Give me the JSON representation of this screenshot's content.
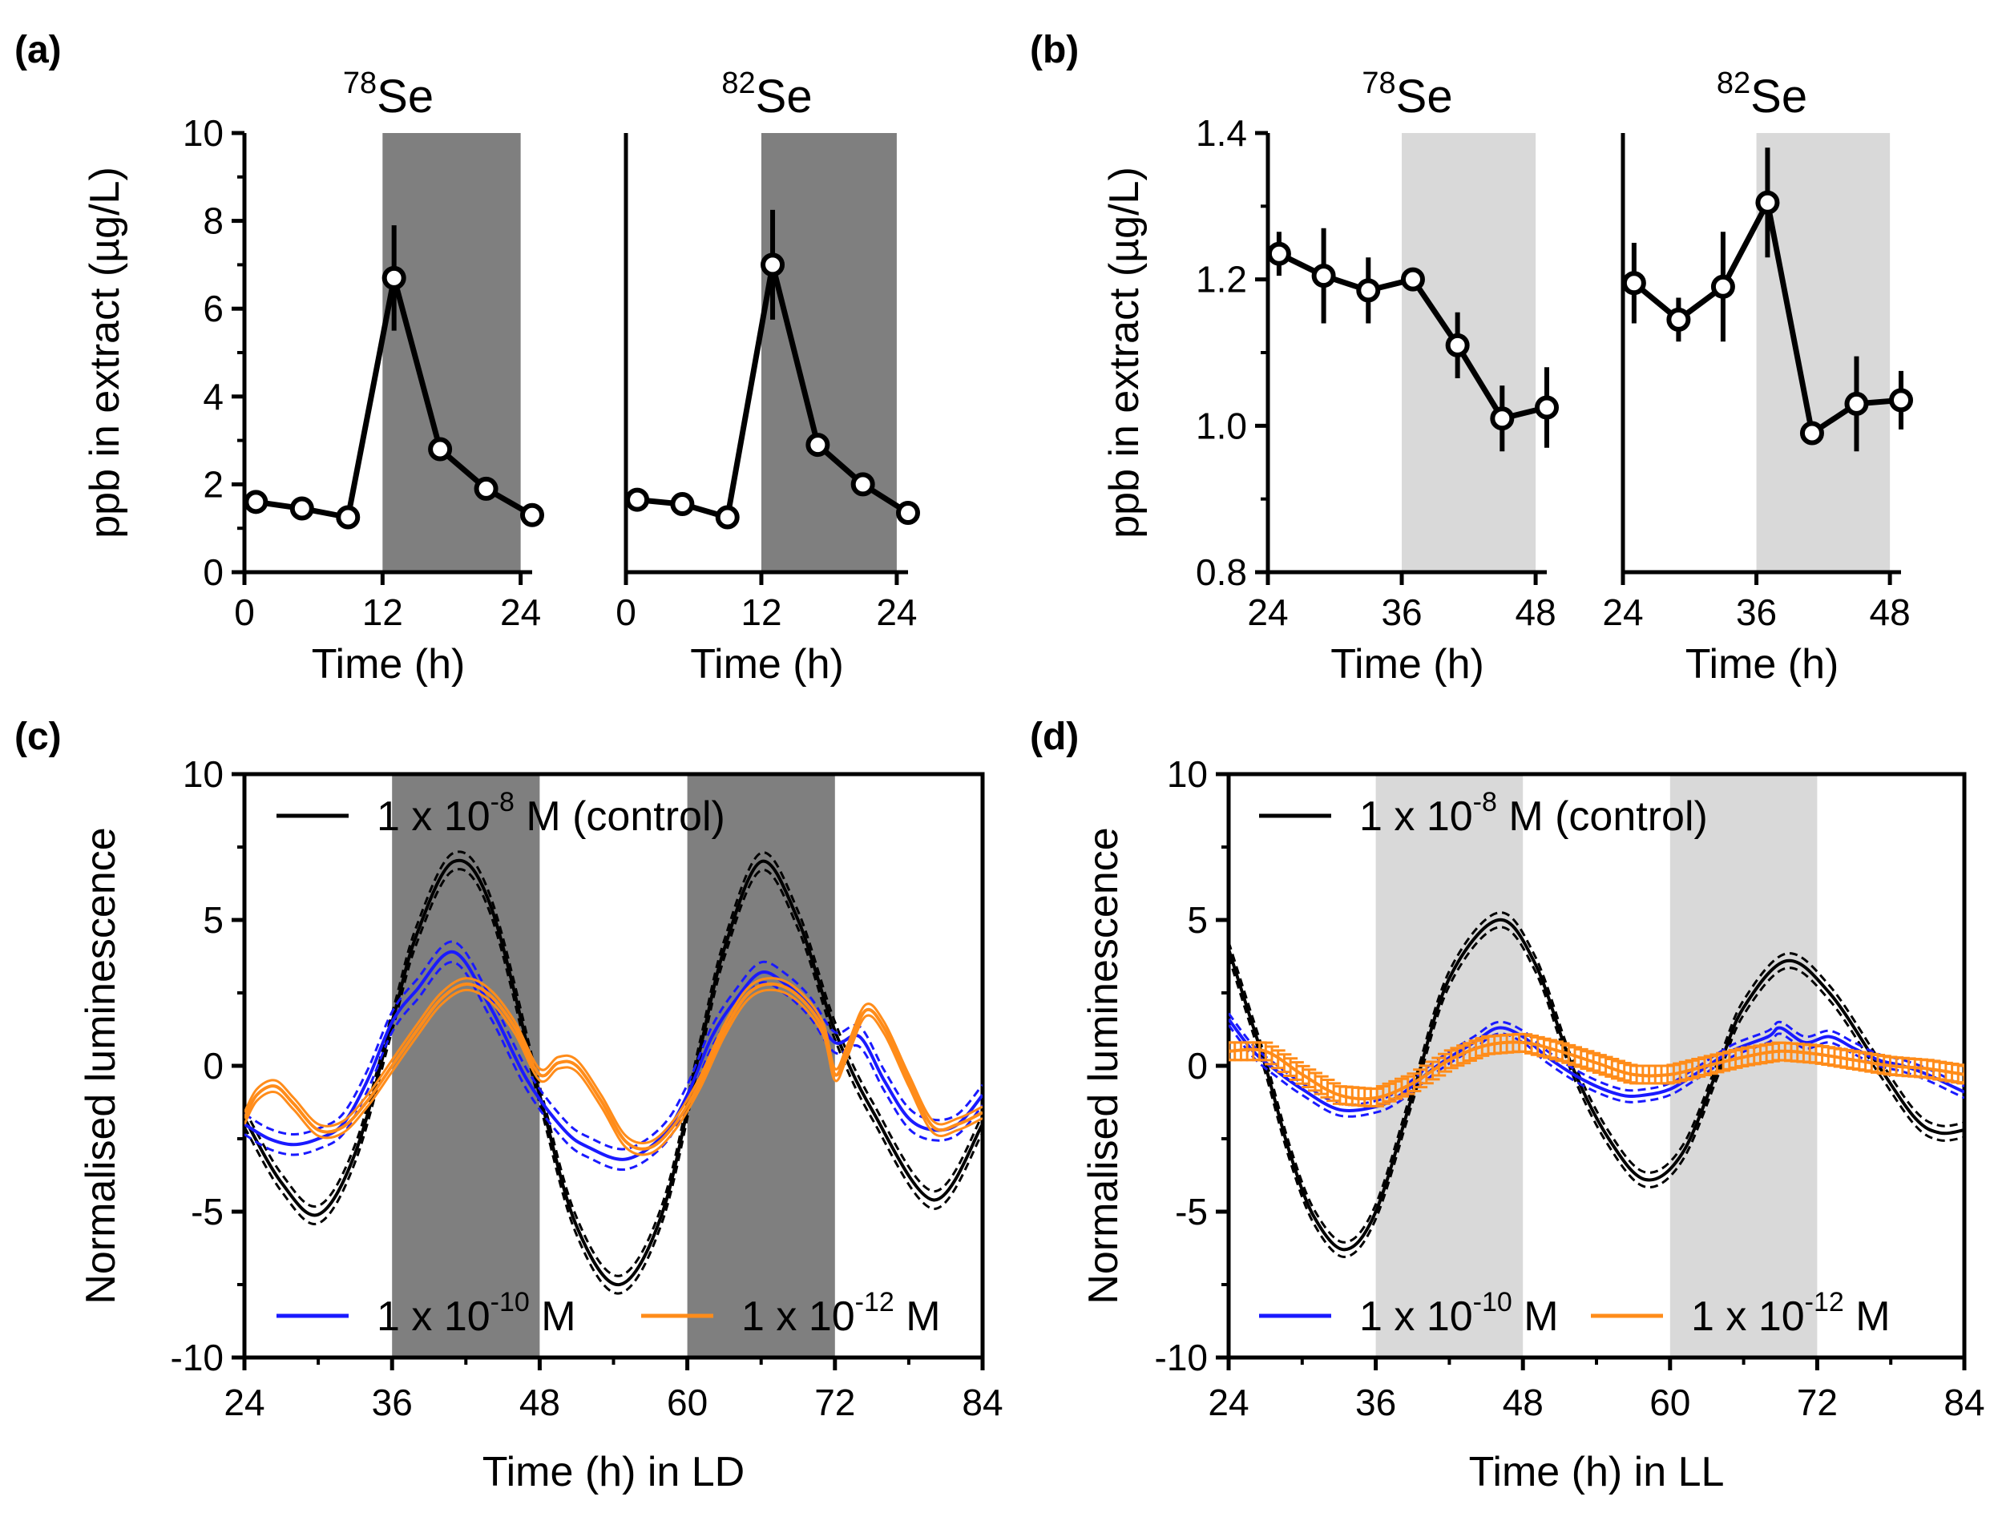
{
  "colors": {
    "axis": "#000000",
    "dark_shade": "#7f7f7f",
    "light_shade": "#d9d9d9",
    "control": "#000000",
    "m10": "#1a1aff",
    "m12": "#ff8c1a"
  },
  "chart_data": [
    {
      "id": "a1",
      "panel_label": "(a)",
      "type": "line",
      "title_mass": "78",
      "title_element": "Se",
      "xlabel": "Time (h)",
      "ylabel": "ppb in extract (µg/L)",
      "xlim": [
        0,
        25
      ],
      "ylim": [
        0,
        10
      ],
      "xticks": [
        "0",
        "12",
        "24"
      ],
      "yticks": [
        "0",
        "2",
        "4",
        "6",
        "8",
        "10"
      ],
      "shade": [
        {
          "from": 12,
          "to": 24,
          "tone": "dark"
        }
      ],
      "x": [
        1,
        5,
        9,
        13,
        17,
        21,
        25
      ],
      "y": [
        1.6,
        1.45,
        1.25,
        6.7,
        2.8,
        1.9,
        1.3
      ],
      "err": [
        0.12,
        0.12,
        0.12,
        1.2,
        0.15,
        0.12,
        0.12
      ]
    },
    {
      "id": "a2",
      "type": "line",
      "title_mass": "82",
      "title_element": "Se",
      "xlabel": "Time (h)",
      "xlim": [
        0,
        25
      ],
      "ylim": [
        0,
        10
      ],
      "xticks": [
        "0",
        "12",
        "24"
      ],
      "shade": [
        {
          "from": 12,
          "to": 24,
          "tone": "dark"
        }
      ],
      "x": [
        1,
        5,
        9,
        13,
        17,
        21,
        25
      ],
      "y": [
        1.65,
        1.55,
        1.25,
        7.0,
        2.9,
        2.0,
        1.35
      ],
      "err": [
        0.12,
        0.12,
        0.12,
        1.25,
        0.15,
        0.12,
        0.12
      ]
    },
    {
      "id": "b1",
      "panel_label": "(b)",
      "type": "line",
      "title_mass": "78",
      "title_element": "Se",
      "xlabel": "Time (h)",
      "ylabel": "ppb in extract (µg/L)",
      "xlim": [
        24,
        49
      ],
      "ylim": [
        0.8,
        1.4
      ],
      "xticks": [
        "24",
        "36",
        "48"
      ],
      "yticks": [
        "0.8",
        "1.0",
        "1.2",
        "1.4"
      ],
      "shade": [
        {
          "from": 36,
          "to": 48,
          "tone": "light"
        }
      ],
      "x": [
        25,
        29,
        33,
        37,
        41,
        45,
        49
      ],
      "y": [
        1.235,
        1.205,
        1.185,
        1.2,
        1.11,
        1.01,
        1.025
      ],
      "err": [
        0.03,
        0.065,
        0.045,
        0.015,
        0.045,
        0.045,
        0.055
      ]
    },
    {
      "id": "b2",
      "type": "line",
      "title_mass": "82",
      "title_element": "Se",
      "xlabel": "Time (h)",
      "xlim": [
        24,
        49
      ],
      "ylim": [
        0.8,
        1.4
      ],
      "xticks": [
        "24",
        "36",
        "48"
      ],
      "shade": [
        {
          "from": 36,
          "to": 48,
          "tone": "light"
        }
      ],
      "x": [
        25,
        29,
        33,
        37,
        41,
        45,
        49
      ],
      "y": [
        1.195,
        1.145,
        1.19,
        1.305,
        0.99,
        1.03,
        1.035
      ],
      "err": [
        0.055,
        0.03,
        0.075,
        0.075,
        0.015,
        0.065,
        0.04
      ]
    },
    {
      "id": "c",
      "panel_label": "(c)",
      "type": "line",
      "xlabel": "Time (h) in LD",
      "ylabel": "Normalised luminescence",
      "xlim": [
        24,
        84
      ],
      "ylim": [
        -10,
        10
      ],
      "xticks": [
        "24",
        "36",
        "48",
        "60",
        "72",
        "84"
      ],
      "yticks": [
        "-10",
        "-5",
        "0",
        "5",
        "10"
      ],
      "shade": [
        {
          "from": 36,
          "to": 48,
          "tone": "dark"
        },
        {
          "from": 60,
          "to": 72,
          "tone": "dark"
        }
      ],
      "series": [
        {
          "key": "control",
          "legend_prefix": "1 x 10",
          "legend_exp": "-8",
          "legend_suffix": " M (control)",
          "band": 0.3,
          "band_style": "dashed",
          "x": [
            24,
            27,
            30,
            33,
            36,
            38,
            41,
            44,
            48,
            51,
            54.5,
            58,
            61,
            63,
            66,
            69,
            72,
            75,
            80,
            84
          ],
          "y": [
            -1.8,
            -4,
            -5.1,
            -3,
            1.5,
            4.5,
            7.0,
            5.5,
            -1.0,
            -5.5,
            -7.5,
            -5.0,
            0.5,
            4.0,
            7.0,
            5.0,
            1.2,
            -1.5,
            -4.6,
            -2.0
          ]
        },
        {
          "key": "m10",
          "legend_prefix": "1 x 10",
          "legend_exp": "-10",
          "legend_suffix": " M",
          "band": 0.35,
          "band_style": "dashed",
          "x": [
            24,
            26,
            28,
            30,
            32,
            34,
            36,
            38,
            41,
            44,
            47,
            50,
            52,
            55,
            58,
            60,
            62,
            64,
            66,
            68,
            70,
            72,
            74,
            76,
            78,
            80,
            82,
            84
          ],
          "y": [
            -2.0,
            -2.5,
            -2.7,
            -2.5,
            -2.0,
            -0.5,
            1.5,
            2.6,
            3.9,
            2.0,
            -0.5,
            -2.2,
            -2.8,
            -3.2,
            -2.4,
            -1.0,
            1.0,
            2.3,
            3.2,
            2.8,
            2.0,
            0.8,
            1.0,
            -0.5,
            -1.8,
            -2.2,
            -2.0,
            -1.0
          ]
        },
        {
          "key": "m12",
          "legend_prefix": "1 x 10",
          "legend_exp": "-12",
          "legend_suffix": " M",
          "band": 0.2,
          "band_style": "solid",
          "x": [
            24,
            25,
            26.5,
            28,
            30,
            32,
            34,
            36,
            38,
            40,
            42,
            44,
            46,
            48,
            49.5,
            51,
            53,
            55,
            57,
            59,
            61,
            63,
            65,
            67,
            69,
            71,
            72,
            73,
            74.5,
            76,
            78,
            80,
            82,
            84
          ],
          "y": [
            -1.8,
            -1.0,
            -0.7,
            -1.3,
            -2.2,
            -2.1,
            -1.2,
            0.0,
            1.2,
            2.3,
            2.8,
            2.4,
            1.3,
            -0.3,
            0.1,
            0.0,
            -1.2,
            -2.6,
            -2.8,
            -2.0,
            -0.6,
            1.2,
            2.5,
            2.8,
            2.4,
            1.3,
            -0.3,
            0.5,
            1.9,
            1.3,
            -0.5,
            -2.1,
            -2.0,
            -1.6
          ]
        }
      ]
    },
    {
      "id": "d",
      "panel_label": "(d)",
      "type": "line",
      "xlabel": "Time (h) in LL",
      "ylabel": "Normalised luminescence",
      "xlim": [
        24,
        84
      ],
      "ylim": [
        -10,
        10
      ],
      "xticks": [
        "24",
        "36",
        "48",
        "60",
        "72",
        "84"
      ],
      "yticks": [
        "-10",
        "-5",
        "0",
        "5",
        "10"
      ],
      "shade": [
        {
          "from": 36,
          "to": 48,
          "tone": "light"
        },
        {
          "from": 60,
          "to": 72,
          "tone": "light"
        }
      ],
      "series": [
        {
          "key": "control",
          "legend_prefix": "1 x 10",
          "legend_exp": "-8",
          "legend_suffix": " M (control)",
          "band": 0.25,
          "band_style": "dashed",
          "x": [
            24,
            25.5,
            27,
            29,
            31,
            33.5,
            36,
            39,
            42,
            46,
            49,
            52,
            55,
            58,
            61,
            64,
            66,
            69.5,
            73,
            77,
            80,
            82,
            84
          ],
          "y": [
            4.0,
            2.0,
            0.0,
            -3.0,
            -5.2,
            -6.3,
            -5.0,
            -1.0,
            3.0,
            5.0,
            3.5,
            0.0,
            -2.5,
            -3.9,
            -3.0,
            0.0,
            2.0,
            3.6,
            2.5,
            0.0,
            -1.8,
            -2.3,
            -2.2
          ]
        },
        {
          "key": "m10",
          "legend_prefix": "1 x 10",
          "legend_exp": "-10",
          "legend_suffix": " M",
          "band": 0.2,
          "band_style": "dashed",
          "x": [
            24,
            26,
            28,
            30,
            33,
            36,
            38,
            41,
            44,
            46,
            48,
            50,
            53,
            56,
            58,
            60,
            62,
            65,
            68,
            69,
            71,
            73,
            75,
            77,
            79,
            81,
            83,
            84
          ],
          "y": [
            1.6,
            0.5,
            -0.2,
            -0.8,
            -1.5,
            -1.4,
            -1.0,
            0.0,
            0.8,
            1.3,
            1.0,
            0.3,
            -0.5,
            -1.0,
            -1.0,
            -0.8,
            -0.3,
            0.5,
            1.0,
            1.3,
            0.8,
            1.0,
            0.6,
            0.2,
            0.0,
            -0.3,
            -0.7,
            -0.9
          ]
        },
        {
          "key": "m12",
          "legend_prefix": "1 x 10",
          "legend_exp": "-12",
          "legend_suffix": " M",
          "band": 0.3,
          "band_style": "errorbars",
          "x": [
            24,
            27,
            30,
            33,
            36,
            39,
            42,
            45,
            48,
            51,
            54,
            57,
            60,
            63,
            66,
            69,
            72,
            75,
            78,
            81,
            84
          ],
          "y": [
            0.5,
            0.5,
            -0.3,
            -1.0,
            -1.1,
            -0.6,
            0.2,
            0.7,
            0.8,
            0.5,
            0.1,
            -0.3,
            -0.3,
            0.0,
            0.3,
            0.5,
            0.4,
            0.2,
            0.0,
            -0.1,
            -0.3
          ]
        }
      ]
    }
  ]
}
